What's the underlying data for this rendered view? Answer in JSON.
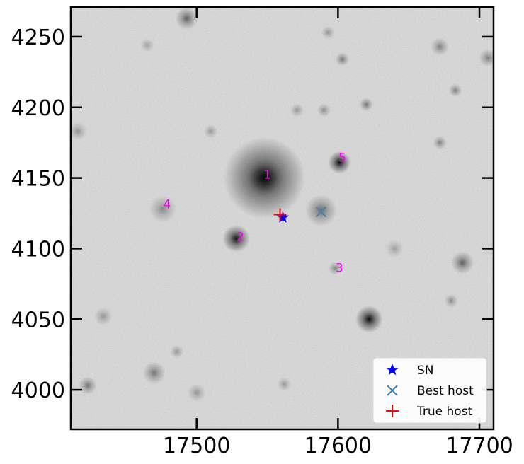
{
  "chart_data": {
    "type": "scatter",
    "title": "",
    "xlabel": "",
    "ylabel": "",
    "xlim": [
      17411,
      17710
    ],
    "ylim": [
      3972,
      4271
    ],
    "x_ticks": [
      17500,
      17600,
      17700
    ],
    "y_ticks": [
      4000,
      4050,
      4100,
      4150,
      4200,
      4250
    ],
    "grid": false,
    "background": "grayscale astronomical image (inverted)",
    "legend_position": "bottom-right",
    "series": [
      {
        "name": "SN",
        "marker": "star",
        "color": "#0000ff",
        "x": [
          17561
        ],
        "y": [
          4122
        ]
      },
      {
        "name": "Best host",
        "marker": "x",
        "color": "#4682b4",
        "x": [
          17588
        ],
        "y": [
          4126
        ]
      },
      {
        "name": "True host",
        "marker": "plus",
        "color": "#ff0000",
        "x": [
          17559
        ],
        "y": [
          4124
        ]
      }
    ],
    "candidates": [
      {
        "label": "1",
        "x": [
          17550
        ],
        "y": [
          4152
        ]
      },
      {
        "label": "2",
        "x": [
          17531
        ],
        "y": [
          4108
        ]
      },
      {
        "label": "3",
        "x": [
          17601
        ],
        "y": [
          4086
        ]
      },
      {
        "label": "4",
        "x": [
          17479
        ],
        "y": [
          4131
        ]
      },
      {
        "label": "5",
        "x": [
          17603
        ],
        "y": [
          4164
        ]
      }
    ],
    "label_color": "#ff00ff",
    "sources": [
      {
        "x": 17548,
        "y": 4150,
        "r": 18,
        "peak": 0.92
      },
      {
        "x": 17548,
        "y": 4150,
        "r": 6,
        "peak": 0.45
      },
      {
        "x": 17528,
        "y": 4107,
        "r": 6,
        "peak": 0.9
      },
      {
        "x": 17588,
        "y": 4127,
        "r": 7,
        "peak": 0.5
      },
      {
        "x": 17601,
        "y": 4161,
        "r": 5,
        "peak": 0.95
      },
      {
        "x": 17622,
        "y": 4050,
        "r": 6,
        "peak": 0.95
      },
      {
        "x": 17476,
        "y": 4128,
        "r": 6,
        "peak": 0.35
      },
      {
        "x": 17598,
        "y": 4086,
        "r": 3,
        "peak": 0.4
      },
      {
        "x": 17493,
        "y": 4263,
        "r": 5,
        "peak": 0.55
      },
      {
        "x": 17603,
        "y": 4234,
        "r": 3,
        "peak": 0.45
      },
      {
        "x": 17620,
        "y": 4202,
        "r": 3,
        "peak": 0.45
      },
      {
        "x": 17590,
        "y": 4198,
        "r": 3,
        "peak": 0.35
      },
      {
        "x": 17571,
        "y": 4198,
        "r": 3,
        "peak": 0.3
      },
      {
        "x": 17672,
        "y": 4243,
        "r": 4,
        "peak": 0.4
      },
      {
        "x": 17706,
        "y": 4235,
        "r": 4,
        "peak": 0.4
      },
      {
        "x": 17688,
        "y": 4090,
        "r": 5,
        "peak": 0.55
      },
      {
        "x": 17672,
        "y": 4175,
        "r": 3,
        "peak": 0.4
      },
      {
        "x": 17683,
        "y": 4212,
        "r": 3,
        "peak": 0.4
      },
      {
        "x": 17470,
        "y": 4012,
        "r": 5,
        "peak": 0.45
      },
      {
        "x": 17423,
        "y": 4003,
        "r": 4,
        "peak": 0.45
      },
      {
        "x": 17416,
        "y": 4183,
        "r": 4,
        "peak": 0.3
      },
      {
        "x": 17500,
        "y": 3998,
        "r": 4,
        "peak": 0.3
      },
      {
        "x": 17593,
        "y": 4253,
        "r": 3,
        "peak": 0.3
      },
      {
        "x": 17680,
        "y": 4063,
        "r": 3,
        "peak": 0.35
      },
      {
        "x": 17434,
        "y": 4052,
        "r": 4,
        "peak": 0.3
      },
      {
        "x": 17510,
        "y": 4183,
        "r": 3,
        "peak": 0.3
      },
      {
        "x": 17640,
        "y": 4100,
        "r": 4,
        "peak": 0.25
      },
      {
        "x": 17465,
        "y": 4244,
        "r": 3,
        "peak": 0.25
      },
      {
        "x": 17486,
        "y": 4027,
        "r": 3,
        "peak": 0.3
      },
      {
        "x": 17562,
        "y": 4004,
        "r": 3,
        "peak": 0.3
      }
    ]
  },
  "colors": {
    "axis": "#000000",
    "tick_text": "#000000",
    "legend_bg": "#ffffff"
  }
}
